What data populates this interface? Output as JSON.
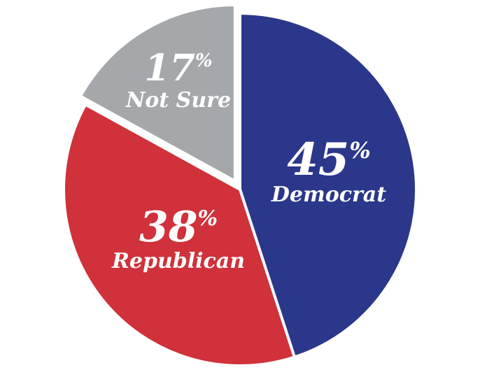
{
  "chart_data": {
    "type": "pie",
    "slices": [
      {
        "label": "Democrat",
        "value": 45,
        "display": "45",
        "unit": "%",
        "color": "#2b378a"
      },
      {
        "label": "Republican",
        "value": 38,
        "display": "38",
        "unit": "%",
        "color": "#d0313a"
      },
      {
        "label": "Not Sure",
        "value": 17,
        "display": "17",
        "unit": "%",
        "color": "#a5a8ab"
      }
    ]
  }
}
